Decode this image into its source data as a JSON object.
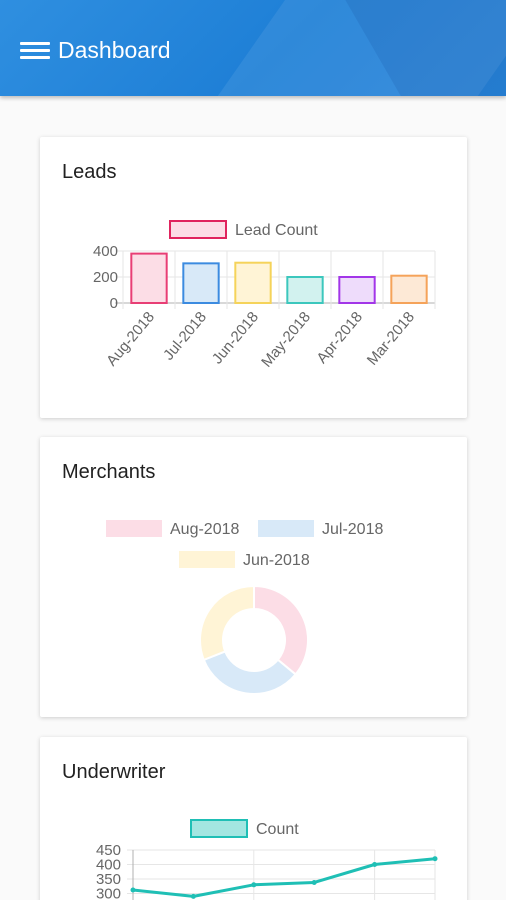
{
  "appbar": {
    "title": "Dashboard",
    "menu_icon": "hamburger-menu-icon"
  },
  "leads": {
    "title": "Leads",
    "chart_data": {
      "type": "bar",
      "categories": [
        "Aug-2018",
        "Jul-2018",
        "Jun-2018",
        "May-2018",
        "Apr-2018",
        "Mar-2018"
      ],
      "series": [
        {
          "name": "Lead Count",
          "values": [
            380,
            305,
            310,
            200,
            200,
            210
          ]
        }
      ],
      "yticks": [
        0,
        200,
        400
      ],
      "ylim": [
        0,
        400
      ],
      "fill_colors": [
        "#fcdde6",
        "#d8e9f8",
        "#fff4d6",
        "#d2f2ef",
        "#eedcfb",
        "#fde9d6"
      ],
      "stroke_colors": [
        "#e83e75",
        "#3c8be0",
        "#f5d35a",
        "#3cc7bd",
        "#a236e8",
        "#f5a35a"
      ],
      "legend_fill": "#fcdde6",
      "legend_stroke": "#e0245e",
      "legend_position": "top",
      "grid": true
    }
  },
  "merchants": {
    "title": "Merchants",
    "chart_data": {
      "type": "pie",
      "donut": true,
      "labels": [
        "Aug-2018",
        "Jul-2018",
        "Jun-2018"
      ],
      "values": [
        36,
        33,
        31
      ],
      "colors": [
        "#fcdde6",
        "#d8e9f8",
        "#fff4d6"
      ],
      "legend_position": "top"
    }
  },
  "underwriter": {
    "title": "Underwriter",
    "chart_data": {
      "type": "line",
      "series": [
        {
          "name": "Count",
          "values": [
            312,
            290,
            330,
            338,
            400,
            420
          ]
        }
      ],
      "yticks": [
        300,
        350,
        400,
        450
      ],
      "color": "#1fbfb5",
      "legend_fill": "#a3e6e1",
      "legend_stroke": "#1fbfb5",
      "legend_position": "top",
      "grid": true
    }
  }
}
